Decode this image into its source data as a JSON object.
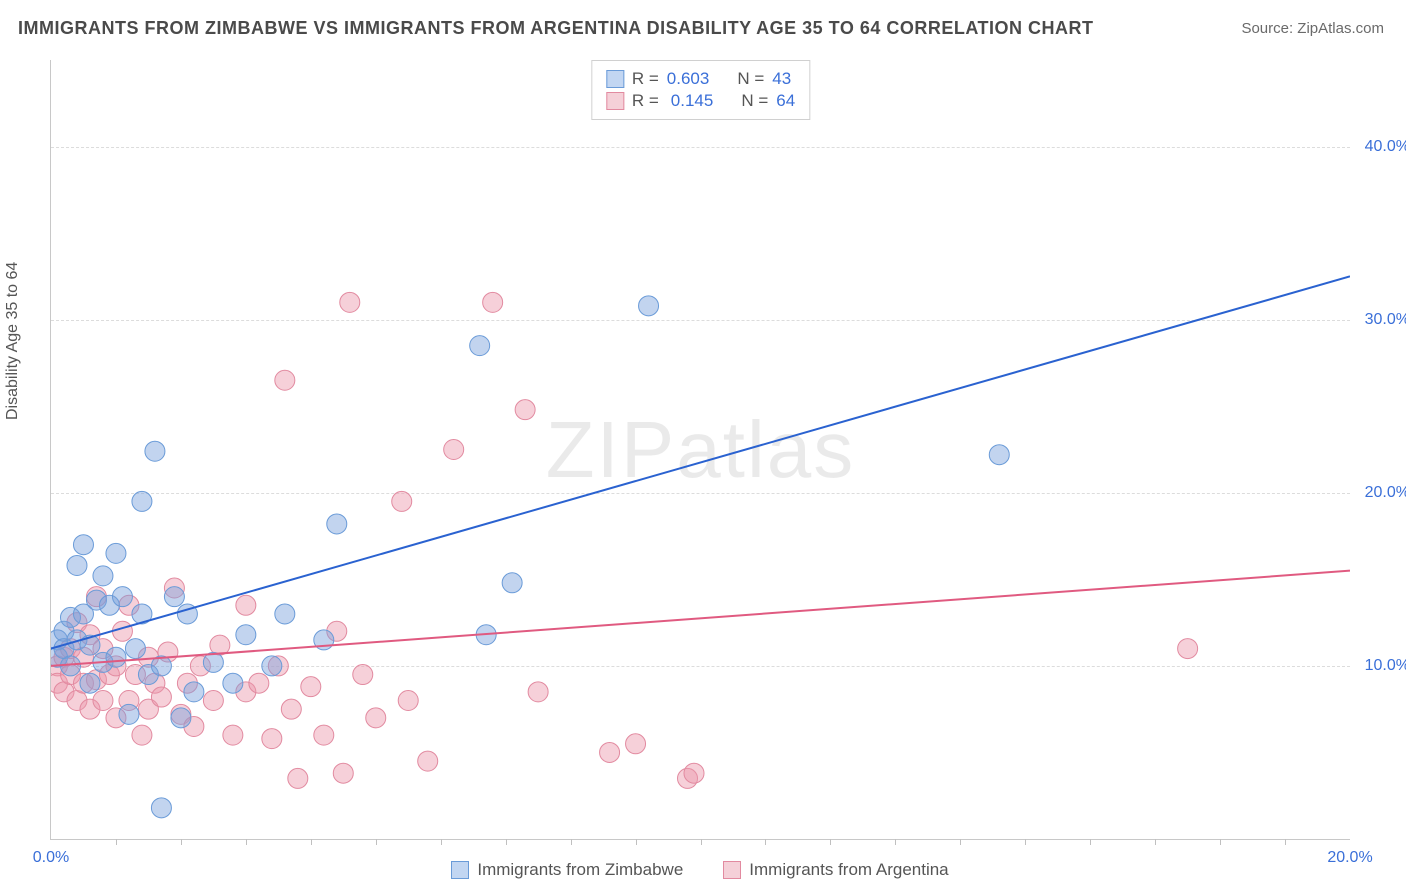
{
  "title": "IMMIGRANTS FROM ZIMBABWE VS IMMIGRANTS FROM ARGENTINA DISABILITY AGE 35 TO 64 CORRELATION CHART",
  "source_label": "Source: ZipAtlas.com",
  "ylabel": "Disability Age 35 to 64",
  "watermark": "ZIPatlas",
  "chart": {
    "type": "scatter-correlation",
    "xlim": [
      0,
      20
    ],
    "ylim": [
      0,
      45
    ],
    "ygrid": [
      10,
      20,
      30,
      40
    ],
    "ytick_labels": [
      "10.0%",
      "20.0%",
      "30.0%",
      "40.0%"
    ],
    "xtick_major": [
      0,
      20
    ],
    "xtick_labels": [
      "0.0%",
      "20.0%"
    ],
    "xtick_minor": [
      1,
      2,
      3,
      4,
      5,
      6,
      7,
      8,
      9,
      10,
      11,
      12,
      13,
      14,
      15,
      16,
      17,
      18,
      19
    ],
    "background": "#ffffff",
    "grid_color": "#dcdcdc",
    "axis_color": "#c8c8c8",
    "tick_color": "#3a6fd8",
    "marker_radius": 10,
    "marker_opacity": 0.55,
    "line_width": 2,
    "series": {
      "zimbabwe": {
        "label": "Immigrants from Zimbabwe",
        "color_fill": "rgba(120,160,220,0.45)",
        "color_stroke": "#6a9bd8",
        "swatch_fill": "#c2d6f2",
        "swatch_border": "#6a9bd8",
        "R": "0.603",
        "N": "43",
        "trend": {
          "x1": 0,
          "y1": 11.0,
          "x2": 20,
          "y2": 32.5,
          "color": "#2a62d0"
        },
        "points": [
          [
            0.1,
            11.5
          ],
          [
            0.1,
            10.5
          ],
          [
            0.2,
            12.0
          ],
          [
            0.2,
            11.0
          ],
          [
            0.3,
            10.0
          ],
          [
            0.3,
            12.8
          ],
          [
            0.4,
            15.8
          ],
          [
            0.4,
            11.5
          ],
          [
            0.5,
            17.0
          ],
          [
            0.5,
            13.0
          ],
          [
            0.6,
            9.0
          ],
          [
            0.6,
            11.2
          ],
          [
            0.7,
            13.8
          ],
          [
            0.8,
            15.2
          ],
          [
            0.8,
            10.2
          ],
          [
            0.9,
            13.5
          ],
          [
            1.0,
            16.5
          ],
          [
            1.0,
            10.5
          ],
          [
            1.1,
            14.0
          ],
          [
            1.2,
            7.2
          ],
          [
            1.3,
            11.0
          ],
          [
            1.4,
            13.0
          ],
          [
            1.4,
            19.5
          ],
          [
            1.5,
            9.5
          ],
          [
            1.6,
            22.4
          ],
          [
            1.7,
            10.0
          ],
          [
            1.9,
            14.0
          ],
          [
            2.0,
            7.0
          ],
          [
            2.1,
            13.0
          ],
          [
            2.2,
            8.5
          ],
          [
            2.5,
            10.2
          ],
          [
            2.8,
            9.0
          ],
          [
            3.0,
            11.8
          ],
          [
            3.4,
            10.0
          ],
          [
            3.6,
            13.0
          ],
          [
            4.2,
            11.5
          ],
          [
            4.4,
            18.2
          ],
          [
            6.6,
            28.5
          ],
          [
            6.7,
            11.8
          ],
          [
            7.1,
            14.8
          ],
          [
            9.2,
            30.8
          ],
          [
            14.6,
            22.2
          ],
          [
            1.7,
            1.8
          ]
        ]
      },
      "argentina": {
        "label": "Immigrants from Argentina",
        "color_fill": "rgba(235,150,170,0.45)",
        "color_stroke": "#e28aa0",
        "swatch_fill": "#f5d0d8",
        "swatch_border": "#e28aa0",
        "R": "0.145",
        "N": "64",
        "trend": {
          "x1": 0,
          "y1": 10.0,
          "x2": 20,
          "y2": 15.5,
          "color": "#e05a80"
        },
        "points": [
          [
            0.1,
            10.0
          ],
          [
            0.1,
            9.0
          ],
          [
            0.2,
            10.5
          ],
          [
            0.2,
            8.5
          ],
          [
            0.3,
            9.5
          ],
          [
            0.3,
            11.0
          ],
          [
            0.4,
            12.5
          ],
          [
            0.4,
            8.0
          ],
          [
            0.5,
            9.0
          ],
          [
            0.5,
            10.5
          ],
          [
            0.6,
            11.8
          ],
          [
            0.6,
            7.5
          ],
          [
            0.7,
            14.0
          ],
          [
            0.7,
            9.2
          ],
          [
            0.8,
            8.0
          ],
          [
            0.8,
            11.0
          ],
          [
            0.9,
            9.5
          ],
          [
            1.0,
            7.0
          ],
          [
            1.0,
            10.0
          ],
          [
            1.1,
            12.0
          ],
          [
            1.2,
            13.5
          ],
          [
            1.2,
            8.0
          ],
          [
            1.3,
            9.5
          ],
          [
            1.4,
            6.0
          ],
          [
            1.5,
            10.5
          ],
          [
            1.5,
            7.5
          ],
          [
            1.6,
            9.0
          ],
          [
            1.7,
            8.2
          ],
          [
            1.8,
            10.8
          ],
          [
            1.9,
            14.5
          ],
          [
            2.0,
            7.2
          ],
          [
            2.1,
            9.0
          ],
          [
            2.2,
            6.5
          ],
          [
            2.3,
            10.0
          ],
          [
            2.5,
            8.0
          ],
          [
            2.6,
            11.2
          ],
          [
            2.8,
            6.0
          ],
          [
            3.0,
            13.5
          ],
          [
            3.0,
            8.5
          ],
          [
            3.2,
            9.0
          ],
          [
            3.4,
            5.8
          ],
          [
            3.5,
            10.0
          ],
          [
            3.6,
            26.5
          ],
          [
            3.7,
            7.5
          ],
          [
            3.8,
            3.5
          ],
          [
            4.0,
            8.8
          ],
          [
            4.2,
            6.0
          ],
          [
            4.4,
            12.0
          ],
          [
            4.5,
            3.8
          ],
          [
            4.6,
            31.0
          ],
          [
            4.8,
            9.5
          ],
          [
            5.0,
            7.0
          ],
          [
            5.4,
            19.5
          ],
          [
            5.5,
            8.0
          ],
          [
            5.8,
            4.5
          ],
          [
            6.2,
            22.5
          ],
          [
            6.8,
            31.0
          ],
          [
            7.3,
            24.8
          ],
          [
            7.5,
            8.5
          ],
          [
            8.6,
            5.0
          ],
          [
            9.0,
            5.5
          ],
          [
            9.8,
            3.5
          ],
          [
            9.9,
            3.8
          ],
          [
            17.5,
            11.0
          ]
        ]
      }
    }
  },
  "legend_stats": {
    "r_label": "R =",
    "n_label": "N ="
  }
}
